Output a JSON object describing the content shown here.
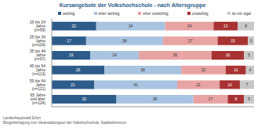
{
  "chart_data": {
    "type": "bar",
    "orientation": "horizontal",
    "stacked": true,
    "data_labels": true,
    "tick_labels": "y",
    "grid": false,
    "legend": "top",
    "title": "Kursangebote der Volkshochschule - nach Altersgruppe",
    "annotations": [
      "Landeshauptstadt Erfurt",
      "Bürgerbefragung zum Veranstaltungsort der Volkshochschule, Stadtteilzentrum"
    ],
    "categories": [
      "16 bis 24 Jahre (n=59)",
      "25 bis 34 Jahre (n=104)",
      "35 bis 44 Jahre (n=97)",
      "45 bis 54 Jahre (n=113)",
      "55 bis 64 Jahre (n=121)",
      "65 Jahre und älter (n=124)"
    ],
    "xlim": [
      0,
      100
    ],
    "series": [
      {
        "name": "wichtig",
        "color": "#2e5c8a",
        "values": [
          22,
          17,
          19,
          26,
          21,
          32
        ]
      },
      {
        "name": "eher wichtig",
        "color": "#a9c4e0",
        "values": [
          34,
          38,
          24,
          38,
          41,
          38
        ]
      },
      {
        "name": "eher unwichtig",
        "color": "#e8a3a3",
        "values": [
          24,
          27,
          36,
          22,
          21,
          17
        ]
      },
      {
        "name": "unwichtig",
        "color": "#a83232",
        "values": [
          12,
          15,
          16,
          10,
          10,
          8
        ]
      },
      {
        "name": "ist mir egal",
        "color": "#c8c8c8",
        "values": [
          8,
          3,
          5,
          4,
          7,
          5
        ]
      }
    ]
  }
}
